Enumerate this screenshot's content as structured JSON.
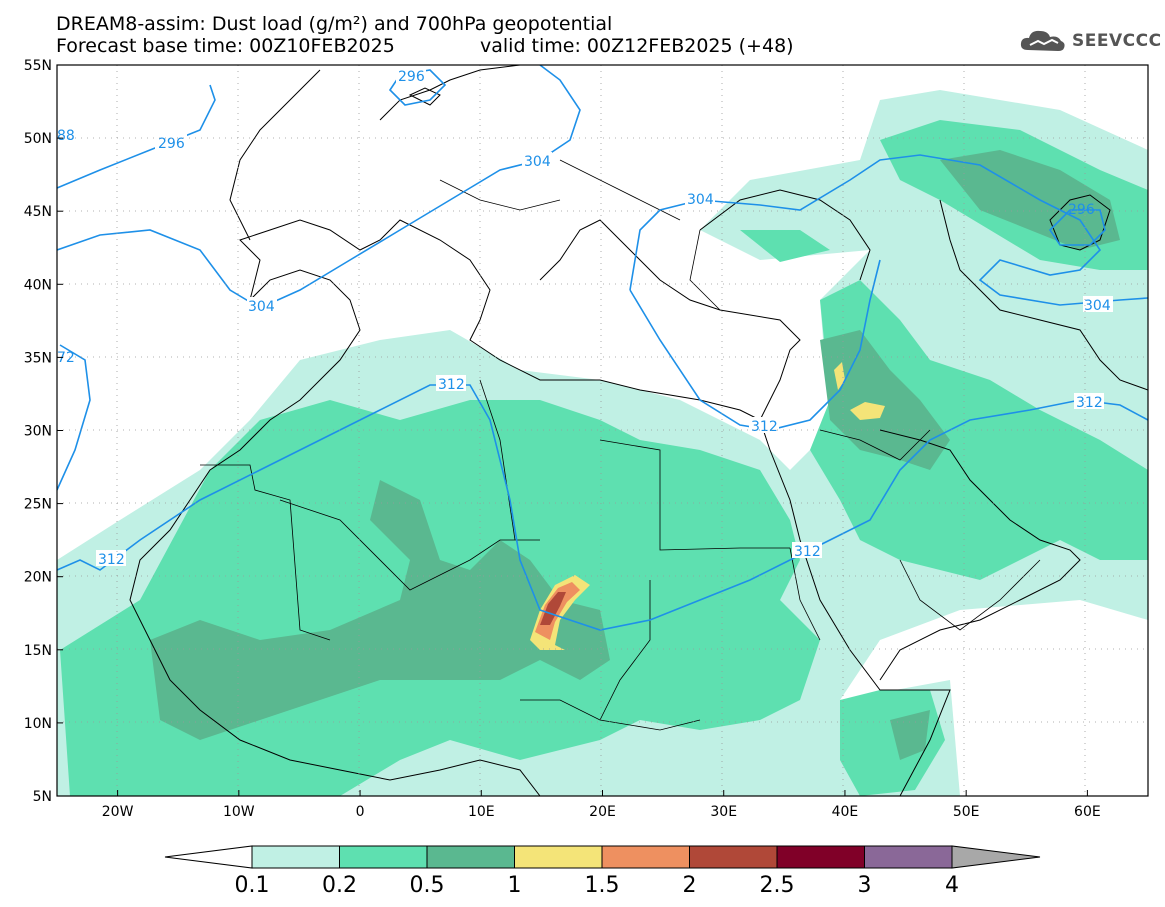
{
  "header": {
    "title_line1": "DREAM8-assim: Dust load (g/m²) and 700hPa geopotential",
    "base_time": "Forecast base time: 00Z10FEB2025",
    "valid_time": "valid time: 00Z12FEB2025 (+48)",
    "logo_text": "SEEVCCC"
  },
  "map": {
    "lon_range": [
      -25,
      65
    ],
    "lat_range": [
      5,
      55
    ],
    "lat_ticks": [
      "55N",
      "50N",
      "45N",
      "40N",
      "35N",
      "30N",
      "25N",
      "20N",
      "15N",
      "10N",
      "5N"
    ],
    "lon_ticks": [
      "20W",
      "10W",
      "0",
      "10E",
      "20E",
      "30E",
      "40E",
      "50E",
      "60E"
    ],
    "contour_labels": [
      "296",
      "296",
      "304",
      "304",
      "304",
      "304",
      "312",
      "312",
      "312",
      "312",
      "296",
      "88",
      "72"
    ],
    "contour_color": "#1e90e8"
  },
  "colorbar": {
    "labels": [
      "0.1",
      "0.2",
      "0.5",
      "1",
      "1.5",
      "2",
      "2.5",
      "3",
      "4"
    ],
    "colors": [
      "#c0f0e4",
      "#5ee0b0",
      "#5ab890",
      "#f4e478",
      "#ee9060",
      "#b04838",
      "#800028",
      "#8a6898",
      "#a8a8a8"
    ]
  }
}
